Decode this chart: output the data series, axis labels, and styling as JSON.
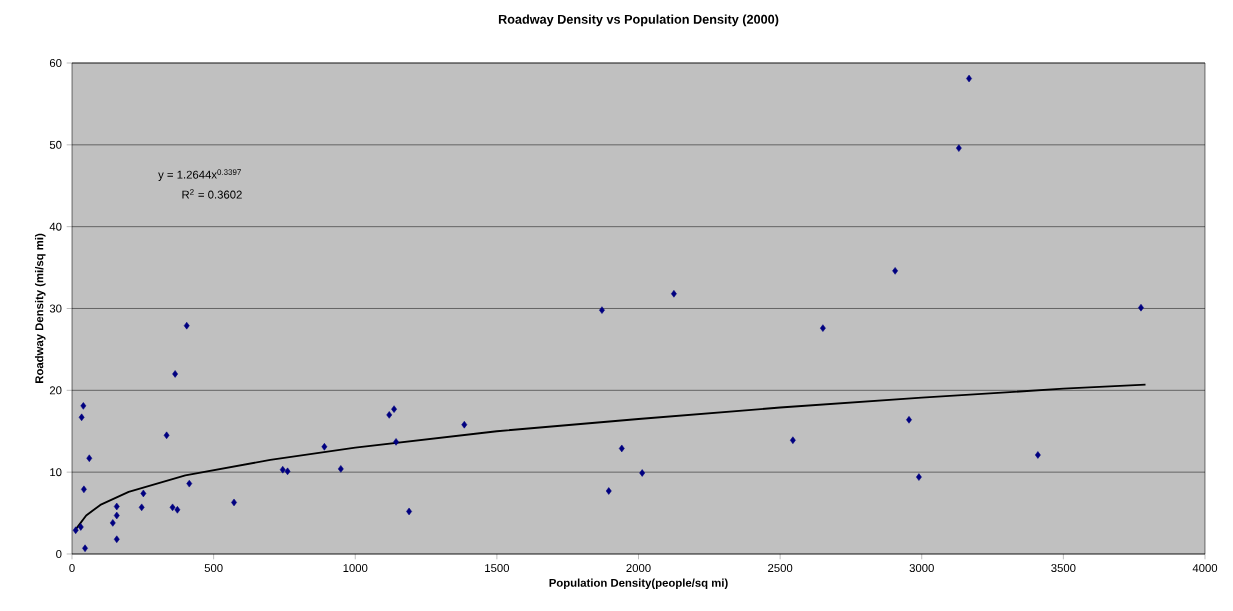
{
  "chart_data": {
    "type": "scatter",
    "title": "Roadway Density vs Population Density (2000)",
    "xlabel": "Population Density(people/sq mi)",
    "ylabel": "Roadway Density (mi/sq mi)",
    "xlim": [
      0,
      4000
    ],
    "ylim": [
      0,
      60
    ],
    "xticks": [
      0,
      500,
      1000,
      1500,
      2000,
      2500,
      3000,
      3500,
      4000
    ],
    "yticks": [
      0,
      10,
      20,
      30,
      40,
      50,
      60
    ],
    "grid": "y",
    "annotations": [
      "y = 1.2644x$^{0.3397}$",
      "R$^{2}$ = 0.3602"
    ],
    "series": [
      {
        "color": "#000080",
        "marker": "diamond",
        "x": [
          13,
          31,
          46,
          40,
          34,
          61,
          42,
          144,
          158,
          158,
          158,
          246,
          252,
          334,
          364,
          405,
          414,
          355,
          372,
          572,
          744,
          761,
          891,
          949,
          1120,
          1137,
          1144,
          1190,
          1385,
          1871,
          1895,
          1941,
          2013,
          2125,
          2545,
          2651,
          2906,
          2955,
          2990,
          3131,
          3167,
          3410,
          3774
        ],
        "values": [
          2.9,
          3.3,
          0.7,
          18.1,
          16.7,
          11.7,
          7.9,
          3.8,
          4.7,
          5.8,
          1.8,
          5.7,
          7.4,
          14.5,
          22.0,
          27.9,
          8.6,
          5.7,
          5.4,
          6.3,
          10.3,
          10.1,
          13.1,
          10.4,
          17.0,
          17.7,
          13.7,
          5.2,
          15.8,
          29.8,
          7.7,
          12.9,
          9.9,
          31.8,
          13.9,
          27.6,
          34.6,
          16.4,
          9.4,
          49.6,
          58.1,
          12.1,
          30.1
        ]
      },
      {
        "type": "line",
        "color": "#000000",
        "marker": "none",
        "line_style": "solid",
        "x": [
          13,
          50,
          100,
          200,
          400,
          700,
          1000,
          1500,
          2000,
          2500,
          3000,
          3500,
          3790
        ],
        "values": [
          3.0,
          4.7,
          6.0,
          7.6,
          9.6,
          11.5,
          13.0,
          15.0,
          16.5,
          17.9,
          19.1,
          20.2,
          20.7
        ]
      }
    ]
  }
}
